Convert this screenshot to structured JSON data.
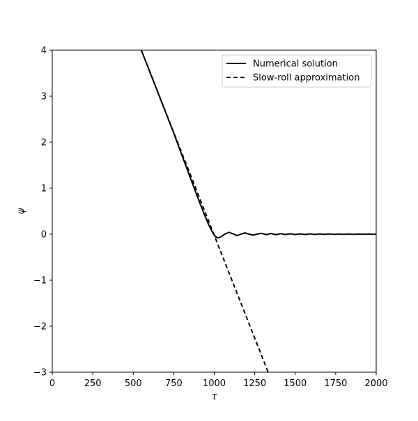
{
  "chart_data": {
    "type": "line",
    "title": "",
    "xlabel": "τ",
    "ylabel": "ψ",
    "xlim": [
      0,
      2000
    ],
    "ylim": [
      -3,
      4
    ],
    "xticks": [
      0,
      250,
      500,
      750,
      1000,
      1250,
      1500,
      1750,
      2000
    ],
    "xtick_labels": [
      "0",
      "250",
      "500",
      "750",
      "1000",
      "1250",
      "1500",
      "1750",
      "2000"
    ],
    "yticks": [
      -3,
      -2,
      -1,
      0,
      1,
      2,
      3,
      4
    ],
    "ytick_labels": [
      "−3",
      "−2",
      "−1",
      "0",
      "1",
      "2",
      "3",
      "4"
    ],
    "grid": false,
    "legend_position": "top-right",
    "series": [
      {
        "name": "Numerical solution",
        "style": "solid",
        "color": "#000000",
        "points": [
          [
            550,
            4.0
          ],
          [
            600,
            3.55
          ],
          [
            650,
            3.1
          ],
          [
            700,
            2.65
          ],
          [
            750,
            2.2
          ],
          [
            800,
            1.72
          ],
          [
            850,
            1.25
          ],
          [
            900,
            0.78
          ],
          [
            940,
            0.42
          ],
          [
            970,
            0.17
          ],
          [
            990,
            0.04
          ],
          [
            1000,
            -0.02
          ],
          [
            1010,
            -0.06
          ],
          [
            1025,
            -0.08
          ],
          [
            1045,
            -0.05
          ],
          [
            1065,
            0.0
          ],
          [
            1090,
            0.04
          ],
          [
            1115,
            0.01
          ],
          [
            1140,
            -0.03
          ],
          [
            1165,
            0.0
          ],
          [
            1190,
            0.03
          ],
          [
            1215,
            0.0
          ],
          [
            1240,
            -0.02
          ],
          [
            1265,
            0.0
          ],
          [
            1290,
            0.02
          ],
          [
            1320,
            -0.01
          ],
          [
            1350,
            0.015
          ],
          [
            1380,
            -0.01
          ],
          [
            1410,
            0.012
          ],
          [
            1440,
            -0.008
          ],
          [
            1470,
            0.01
          ],
          [
            1500,
            -0.007
          ],
          [
            1530,
            0.008
          ],
          [
            1560,
            -0.006
          ],
          [
            1590,
            0.007
          ],
          [
            1620,
            -0.005
          ],
          [
            1650,
            0.006
          ],
          [
            1680,
            -0.004
          ],
          [
            1710,
            0.005
          ],
          [
            1740,
            -0.004
          ],
          [
            1770,
            0.004
          ],
          [
            1800,
            -0.003
          ],
          [
            1830,
            0.004
          ],
          [
            1860,
            -0.003
          ],
          [
            1890,
            0.003
          ],
          [
            1920,
            -0.002
          ],
          [
            1950,
            0.003
          ],
          [
            1980,
            -0.002
          ],
          [
            2000,
            0.0
          ]
        ]
      },
      {
        "name": "Slow-roll approximation",
        "style": "dashed",
        "color": "#000000",
        "points": [
          [
            550,
            4.0
          ],
          [
            1333,
            -3.0
          ]
        ]
      }
    ]
  }
}
